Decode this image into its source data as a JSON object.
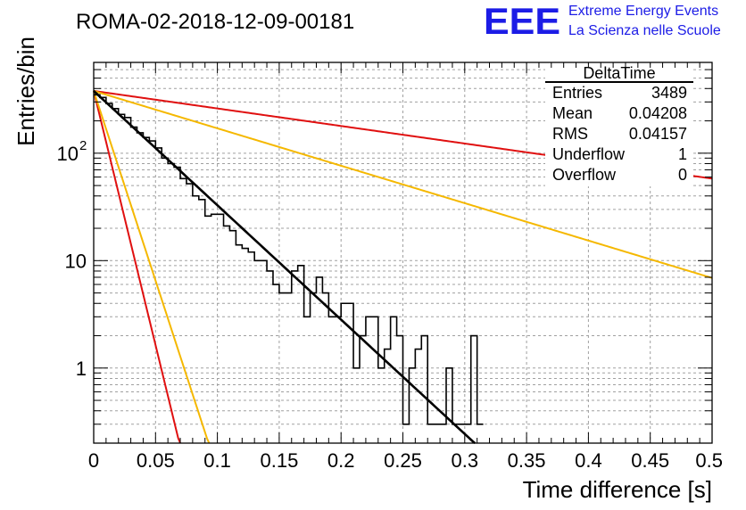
{
  "logo": {
    "mark": "EEE",
    "line1": "Extreme Energy Events",
    "line2": "La Scienza nelle Scuole",
    "color": "#1c1ce6"
  },
  "stats": {
    "title": "DeltaTime",
    "rows": [
      {
        "label": "Entries",
        "value": "3489"
      },
      {
        "label": "Mean",
        "value": "0.04208"
      },
      {
        "label": "RMS",
        "value": "0.04157"
      },
      {
        "label": "Underflow",
        "value": "1"
      },
      {
        "label": "Overflow",
        "value": "0"
      }
    ]
  },
  "chart_data": {
    "type": "line",
    "title": "ROMA-02-2018-12-09-00181",
    "xlabel": "Time difference [s]",
    "ylabel": "Entries/bin",
    "xlim": [
      0,
      0.5
    ],
    "ylim": [
      0.2,
      700
    ],
    "yscale": "log",
    "grid": true,
    "xticks": [
      "0",
      "0.05",
      "0.1",
      "0.15",
      "0.2",
      "0.25",
      "0.3",
      "0.35",
      "0.4",
      "0.45",
      "0.5"
    ],
    "xtick_values": [
      0,
      0.05,
      0.1,
      0.15,
      0.2,
      0.25,
      0.3,
      0.35,
      0.4,
      0.45,
      0.5
    ],
    "yticks": [
      {
        "value": 1,
        "label": "1"
      },
      {
        "value": 10,
        "label": "10"
      },
      {
        "value": 100,
        "label": "10",
        "exp": "2"
      }
    ],
    "histogram": {
      "name": "DeltaTime",
      "bin_width": 0.005,
      "x_start": 0,
      "color": "#000000",
      "counts": [
        350,
        330,
        290,
        260,
        230,
        215,
        175,
        155,
        140,
        130,
        112,
        90,
        80,
        74,
        58,
        52,
        40,
        37,
        26,
        27,
        27,
        21,
        19,
        14,
        13,
        12,
        10,
        10,
        8,
        6,
        5,
        5,
        8,
        9,
        3,
        5,
        7,
        5,
        3,
        3,
        4,
        4,
        1,
        2,
        3,
        3,
        1,
        1.5,
        3,
        2,
        0.3,
        1,
        1.5,
        2,
        0.3,
        0.3,
        0.3,
        1,
        0.3,
        0.3,
        0.3,
        2,
        0.3
      ]
    },
    "series": [
      {
        "name": "",
        "type": "exponential",
        "color": "#000000",
        "A": 380,
        "tau": 0.0408,
        "x_range": [
          0,
          0.5
        ]
      },
      {
        "name": "",
        "type": "exponential",
        "color": "#e01010",
        "A": 380,
        "tau": 0.266,
        "x_range": [
          0,
          0.5
        ]
      },
      {
        "name": "",
        "type": "exponential",
        "color": "#f5b800",
        "A": 380,
        "tau": 0.1247,
        "x_range": [
          0,
          0.5
        ]
      },
      {
        "name": "",
        "type": "exponential",
        "color": "#e01010",
        "A": 380,
        "tau": 0.00918,
        "x_range": [
          0,
          0.5
        ]
      },
      {
        "name": "",
        "type": "exponential",
        "color": "#f5b800",
        "A": 380,
        "tau": 0.0123,
        "x_range": [
          0,
          0.5
        ]
      }
    ]
  }
}
